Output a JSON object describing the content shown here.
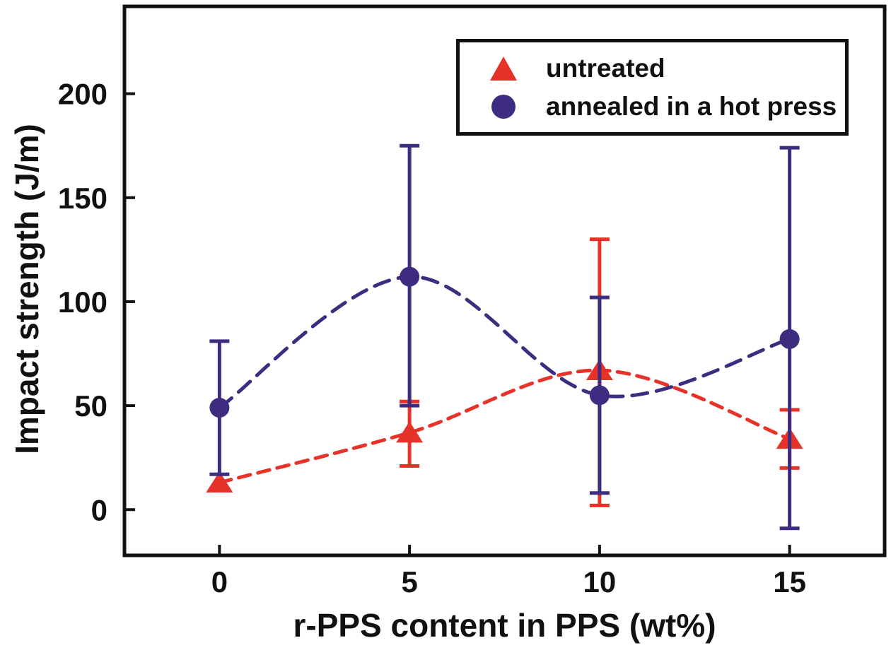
{
  "figure": {
    "background_color": "#ffffff",
    "border_color": "#111111"
  },
  "legend": {
    "items": [
      {
        "label": "untreated",
        "marker": "triangle",
        "color": "#e63229"
      },
      {
        "label": "annealed in a hot press",
        "marker": "circle",
        "color": "#3e2c80"
      }
    ]
  },
  "chart_data": {
    "type": "line",
    "title": "",
    "xlabel": "r-PPS content in PPS (wt%)",
    "ylabel": "Impact strength (J/m)",
    "x": [
      0,
      5,
      10,
      15
    ],
    "xticks": [
      "0",
      "5",
      "10",
      "15"
    ],
    "xtick_values": [
      0,
      5,
      10,
      15
    ],
    "yticks": [
      "0",
      "50",
      "100",
      "150",
      "200"
    ],
    "ytick_values": [
      0,
      50,
      100,
      150,
      200
    ],
    "xlim": [
      -2.5,
      17.5
    ],
    "ylim": [
      -22,
      242
    ],
    "grid": false,
    "legend_position": "top-right",
    "series": [
      {
        "name": "untreated",
        "marker": "triangle",
        "color": "#e63229",
        "line_style": "dashed",
        "values": [
          13,
          37,
          67,
          34
        ],
        "error_low": [
          null,
          21,
          2,
          20
        ],
        "error_high": [
          null,
          52,
          130,
          48
        ]
      },
      {
        "name": "annealed in a hot press",
        "marker": "circle",
        "color": "#3e2c80",
        "line_style": "dashed",
        "values": [
          49,
          112,
          55,
          82
        ],
        "error_low": [
          17,
          50,
          8,
          -9
        ],
        "error_high": [
          81,
          175,
          102,
          174
        ]
      }
    ]
  }
}
